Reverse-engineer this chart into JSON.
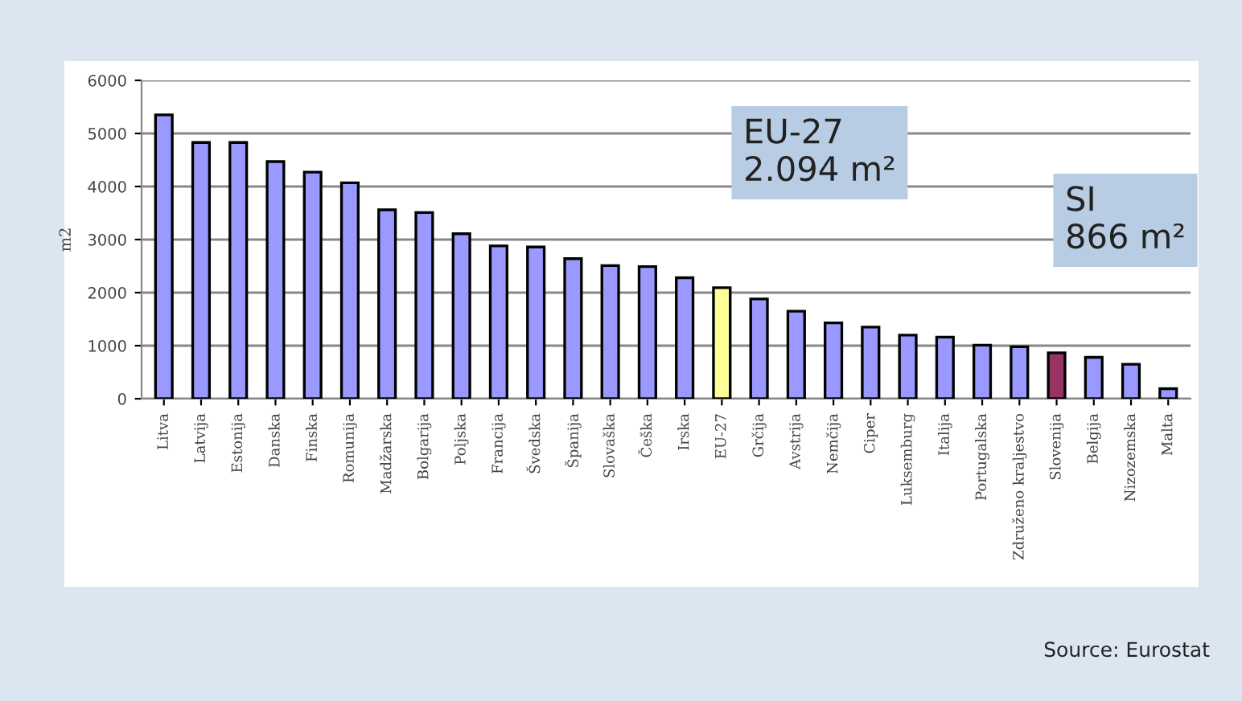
{
  "chart_data": {
    "type": "bar",
    "ylabel": "m2",
    "categories": [
      "Litva",
      "Latvija",
      "Estonija",
      "Danska",
      "Finska",
      "Romunija",
      "Madžarska",
      "Bolgarija",
      "Poljska",
      "Francija",
      "Švedska",
      "Španija",
      "Slovaška",
      "Češka",
      "Irska",
      "EU-27",
      "Grčija",
      "Avstrija",
      "Nemčija",
      "Ciper",
      "Luksemburg",
      "Italija",
      "Portugalska",
      "Združeno kraljestvo",
      "Slovenija",
      "Belgija",
      "Nizozemska",
      "Malta"
    ],
    "values": [
      5350,
      4830,
      4830,
      4470,
      4270,
      4070,
      3560,
      3510,
      3110,
      2880,
      2860,
      2640,
      2510,
      2490,
      2280,
      2094,
      1880,
      1650,
      1430,
      1350,
      1200,
      1160,
      1010,
      980,
      866,
      780,
      650,
      190
    ],
    "colors": [
      "#9999ff",
      "#9999ff",
      "#9999ff",
      "#9999ff",
      "#9999ff",
      "#9999ff",
      "#9999ff",
      "#9999ff",
      "#9999ff",
      "#9999ff",
      "#9999ff",
      "#9999ff",
      "#9999ff",
      "#9999ff",
      "#9999ff",
      "#ffff99",
      "#9999ff",
      "#9999ff",
      "#9999ff",
      "#9999ff",
      "#9999ff",
      "#9999ff",
      "#9999ff",
      "#9999ff",
      "#993366",
      "#9999ff",
      "#9999ff",
      "#9999ff"
    ],
    "ylim": [
      0,
      6000
    ],
    "yticks": [
      0,
      1000,
      2000,
      3000,
      4000,
      5000,
      6000
    ],
    "grid": "y",
    "legend": false,
    "annotations": [
      "EU-27\n2.094 m²",
      "SI\n866 m²",
      "Source: Eurostat"
    ]
  }
}
